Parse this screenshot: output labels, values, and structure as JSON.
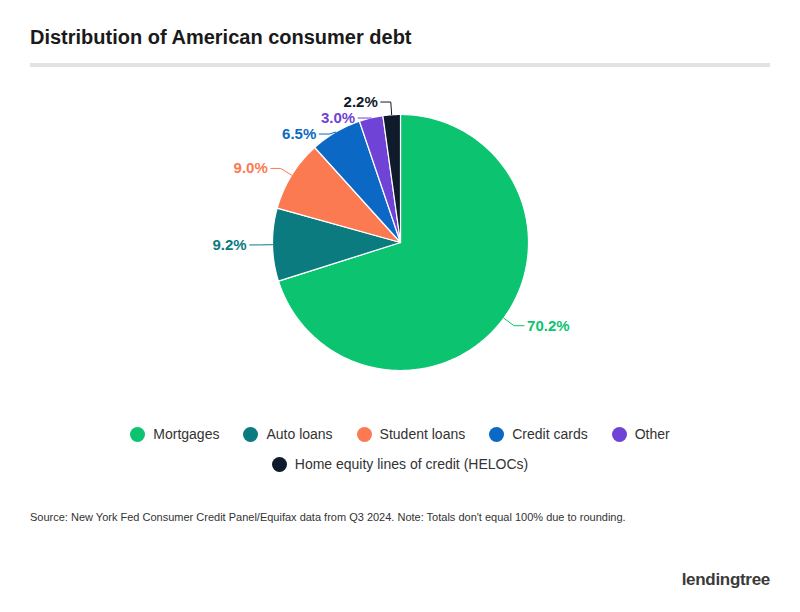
{
  "chart_data": {
    "type": "pie",
    "title": "Distribution of American consumer debt",
    "categories": [
      "Mortgages",
      "Auto loans",
      "Student loans",
      "Credit cards",
      "Other",
      "Home equity lines of credit (HELOCs)"
    ],
    "values": [
      70.2,
      9.2,
      9.0,
      6.5,
      3.0,
      2.2
    ],
    "value_labels": [
      "70.2%",
      "9.2%",
      "9.0%",
      "6.5%",
      "3.0%",
      "2.2%"
    ],
    "colors": [
      "#0cc470",
      "#0b7b80",
      "#fb7a52",
      "#0b68c4",
      "#6f43d6",
      "#0f1a2a"
    ],
    "data_labels": true,
    "legend": "bottom",
    "source": "Source: New York Fed Consumer Credit Panel/Equifax data from Q3 2024. Note: Totals don't equal 100% due to rounding.",
    "brand": "lendingtree"
  }
}
